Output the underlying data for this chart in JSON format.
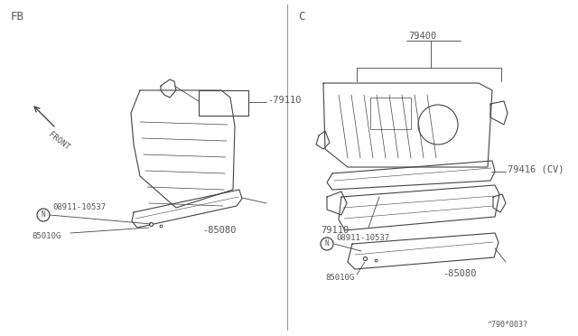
{
  "bg_color": "#ffffff",
  "fig_width": 6.4,
  "fig_height": 3.72,
  "dpi": 100,
  "left_panel_label": "FB",
  "right_panel_label": "C",
  "footer_text": "^790*003?",
  "line_color": "#444444",
  "label_color": "#555555"
}
